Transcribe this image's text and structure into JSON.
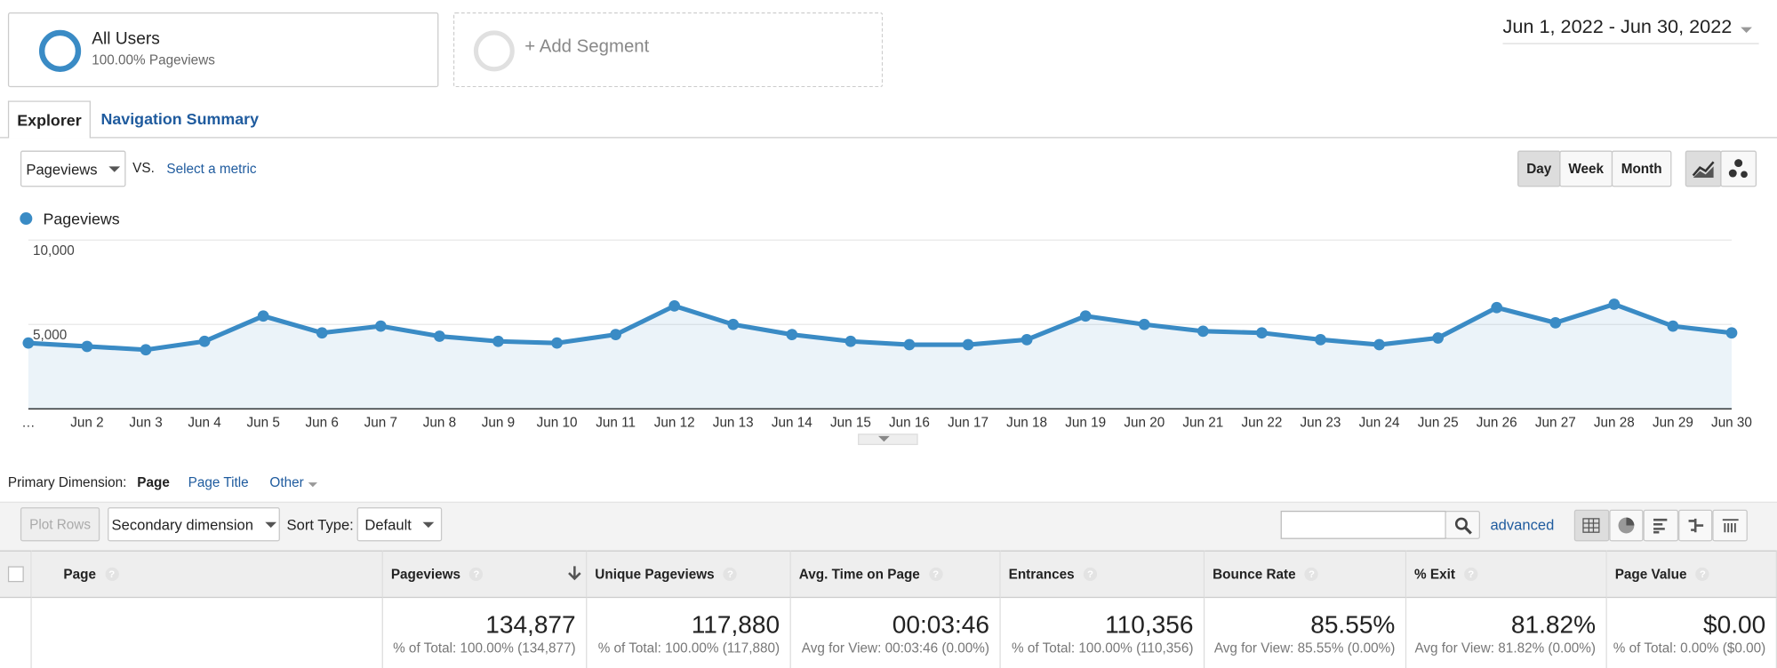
{
  "segments": {
    "active": {
      "title": "All Users",
      "subtitle": "100.00% Pageviews"
    },
    "add": "+ Add Segment"
  },
  "date_range": "Jun 1, 2022 - Jun 30, 2022",
  "tabs": [
    "Explorer",
    "Navigation Summary"
  ],
  "metric_picker": {
    "selected": "Pageviews",
    "vs": "VS.",
    "select": "Select a metric"
  },
  "periods": [
    "Day",
    "Week",
    "Month"
  ],
  "chart_data": {
    "type": "line",
    "categories": [
      "…",
      "Jun 2",
      "Jun 3",
      "Jun 4",
      "Jun 5",
      "Jun 6",
      "Jun 7",
      "Jun 8",
      "Jun 9",
      "Jun 10",
      "Jun 11",
      "Jun 12",
      "Jun 13",
      "Jun 14",
      "Jun 15",
      "Jun 16",
      "Jun 17",
      "Jun 18",
      "Jun 19",
      "Jun 20",
      "Jun 21",
      "Jun 22",
      "Jun 23",
      "Jun 24",
      "Jun 25",
      "Jun 26",
      "Jun 27",
      "Jun 28",
      "Jun 29",
      "Jun 30"
    ],
    "series": [
      {
        "name": "Pageviews",
        "color": "#3a8bc5",
        "values": [
          3900,
          3700,
          3500,
          4000,
          5500,
          4500,
          4900,
          4300,
          4000,
          3900,
          4400,
          6100,
          5000,
          4400,
          4000,
          3800,
          3800,
          4100,
          5500,
          5000,
          4600,
          4500,
          4100,
          3800,
          4200,
          6000,
          5100,
          6200,
          4900,
          4500
        ]
      }
    ],
    "ylim": [
      0,
      10000
    ],
    "yticks": [
      {
        "value": 5000,
        "label": "5,000"
      },
      {
        "value": 10000,
        "label": "10,000"
      }
    ],
    "grid": true
  },
  "dimension": {
    "label": "Primary Dimension:",
    "options": [
      "Page",
      "Page Title",
      "Other"
    ]
  },
  "toolbar": {
    "plot_rows": "Plot Rows",
    "secondary_dimension": "Secondary dimension",
    "sort_type": "Sort Type:",
    "sort_default": "Default",
    "advanced": "advanced"
  },
  "table": {
    "columns": [
      "Page",
      "Pageviews",
      "Unique Pageviews",
      "Avg. Time on Page",
      "Entrances",
      "Bounce Rate",
      "% Exit",
      "Page Value"
    ],
    "totals": [
      {
        "value": "134,877",
        "note": "% of Total: 100.00% (134,877)"
      },
      {
        "value": "117,880",
        "note": "% of Total: 100.00% (117,880)"
      },
      {
        "value": "00:03:46",
        "note": "Avg for View: 00:03:46 (0.00%)"
      },
      {
        "value": "110,356",
        "note": "% of Total: 100.00% (110,356)"
      },
      {
        "value": "85.55%",
        "note": "Avg for View: 85.55% (0.00%)"
      },
      {
        "value": "81.82%",
        "note": "Avg for View: 81.82% (0.00%)"
      },
      {
        "value": "$0.00",
        "note": "% of Total: 0.00% ($0.00)"
      }
    ]
  }
}
